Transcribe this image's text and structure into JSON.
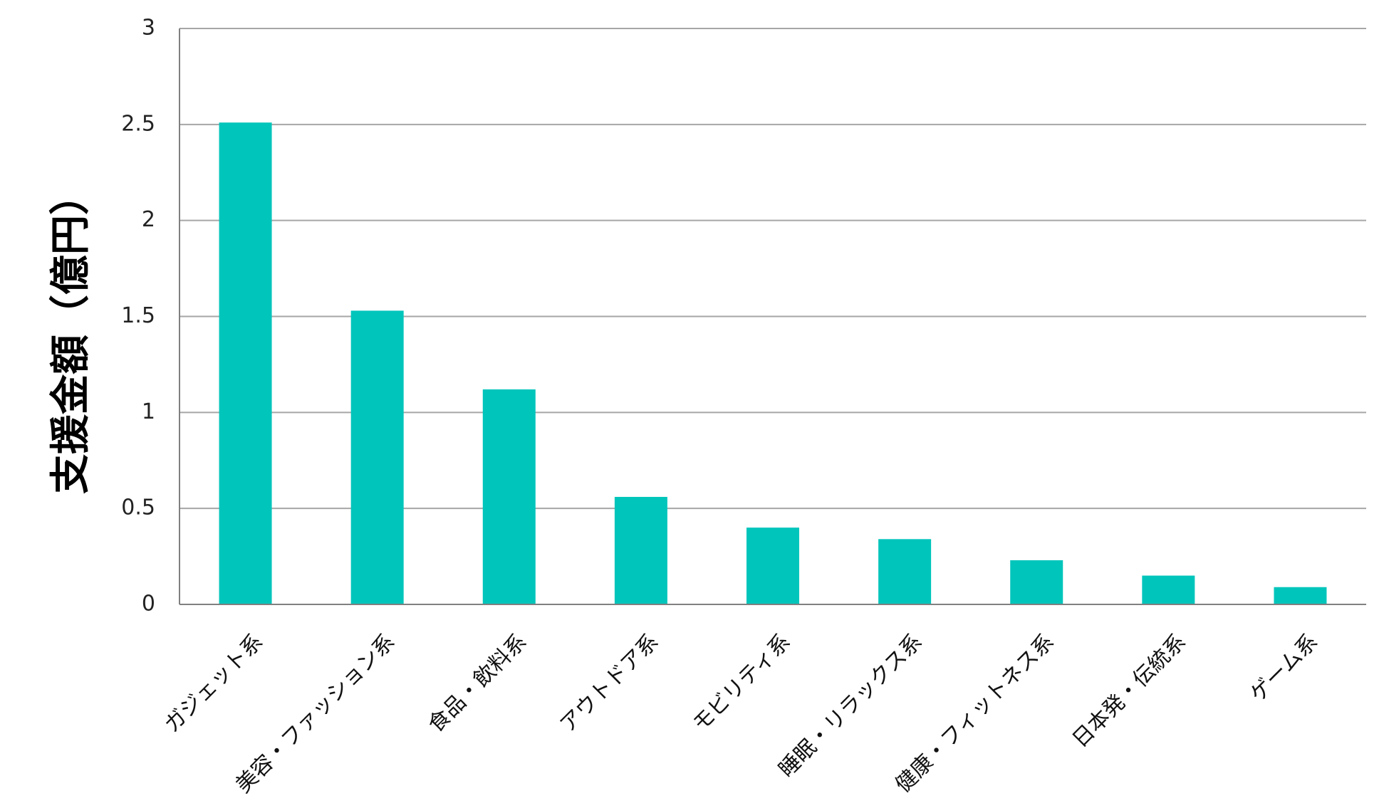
{
  "chart_data": {
    "type": "bar",
    "title": "",
    "xlabel": "",
    "ylabel": "支援金額（億円）",
    "categories": [
      "ガジェット系",
      "美容・ファッション系",
      "食品・飲料系",
      "アウトドア系",
      "モビリティ系",
      "睡眠・リラックス系",
      "健康・フィットネス系",
      "日本発・伝統系",
      "ゲーム系"
    ],
    "values": [
      2.51,
      1.53,
      1.12,
      0.56,
      0.4,
      0.34,
      0.23,
      0.15,
      0.09
    ],
    "ylim": [
      0,
      3
    ],
    "yticks": [
      "0",
      "0.5",
      "1",
      "1.5",
      "2",
      "2.5",
      "3"
    ],
    "grid": true,
    "legend": "none",
    "colors": {
      "bar": "#00C5BB",
      "grid": "#A6A6A6",
      "axis": "#808080"
    }
  }
}
